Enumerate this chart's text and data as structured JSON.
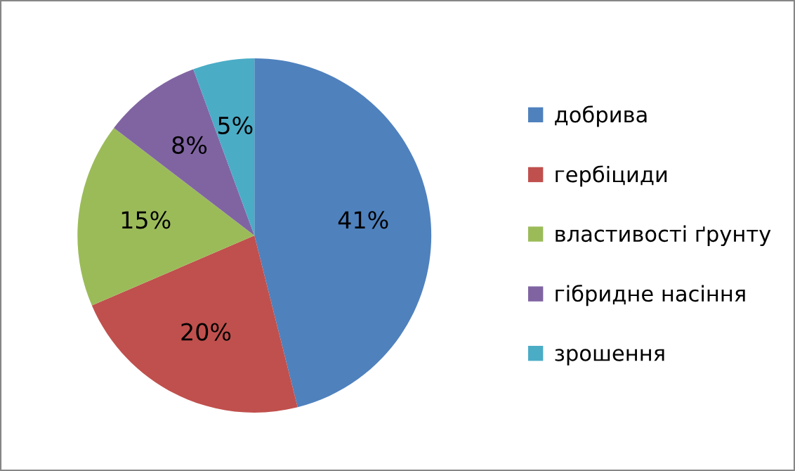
{
  "chart_data": {
    "type": "pie",
    "categories": [
      "добрива",
      "гербіциди",
      "властивості ґрунту",
      "гібридне насіння",
      "зрошення"
    ],
    "values": [
      41,
      20,
      15,
      8,
      5
    ],
    "colors": [
      "#4f81bd",
      "#c0504d",
      "#9bbb59",
      "#8064a2",
      "#4bacc6"
    ],
    "value_labels": [
      "41%",
      "20%",
      "15%",
      "8%",
      "5%"
    ],
    "legend": "right"
  }
}
